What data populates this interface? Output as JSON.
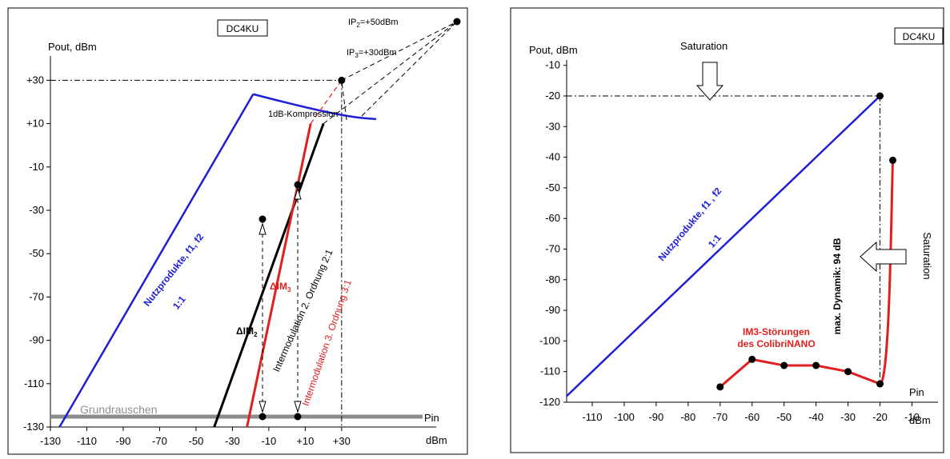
{
  "chart_data": [
    {
      "type": "line",
      "callsign": "DC4KU",
      "ylabel": "Pout, dBm",
      "xlabel": "Pin",
      "x_unit": "dBm",
      "xlim": [
        -130,
        40
      ],
      "ylim": [
        -130,
        40
      ],
      "x_ticks": [
        "-130",
        "-110",
        "-90",
        "-70",
        "-50",
        "-30",
        "-10",
        "+10",
        "+30"
      ],
      "y_ticks": [
        "+30",
        "+10",
        "-10",
        "-30",
        "-50",
        "-70",
        "-90",
        "-110",
        "-130"
      ],
      "series": [
        {
          "name": "Nutzprodukte, f1, f2",
          "slope_label": "1:1",
          "color": "#1f1fd6",
          "x": [
            -125,
            -18.6
          ],
          "y": [
            -130,
            23.6
          ]
        },
        {
          "name": "Intermodulation 2. Ordnung 2:1",
          "color": "#000000",
          "x": [
            -40,
            20
          ],
          "y": [
            -130,
            10
          ]
        },
        {
          "name": "Intermodulation 3. Ordnung 3:1",
          "color": "#e02020",
          "x": [
            -22,
            13
          ],
          "y": [
            -130,
            10
          ]
        }
      ],
      "points": [
        {
          "name": "IP3",
          "label": "+30dBm",
          "x": 30,
          "y": 30
        },
        {
          "name": "IP2",
          "label": "+50dBm",
          "x": 50,
          "y": 50
        }
      ],
      "annotations": {
        "compression": "1dB-Kompression",
        "noise_floor": "Grundrauschen",
        "delta_im2": "ΔIM",
        "delta_im3": "ΔIM",
        "ip2_prefix": "IP",
        "ip3_prefix": "IP",
        "sub2": "2",
        "sub3": "3"
      }
    },
    {
      "type": "line",
      "callsign": "DC4KU",
      "ylabel": "Pout, dBm",
      "xlabel": "Pin",
      "x_unit": "dBm",
      "xlim": [
        -120,
        -5
      ],
      "ylim": [
        -120,
        -5
      ],
      "x_ticks": [
        "-110",
        "-100",
        "-90",
        "-80",
        "-70",
        "-60",
        "-50",
        "-40",
        "-30",
        "-20",
        "-10"
      ],
      "y_ticks": [
        "-10",
        "-20",
        "-30",
        "-40",
        "-50",
        "-60",
        "-70",
        "-80",
        "-90",
        "-100",
        "-110",
        "-120"
      ],
      "series": [
        {
          "name": "Nutzprodukte, f1 , f2",
          "slope_label": "1:1",
          "color": "#1f1fd6",
          "x": [
            -118,
            -20
          ],
          "y": [
            -118,
            -20
          ]
        },
        {
          "name": "IM3-Störungen des ColibriNANO",
          "color": "#e02020",
          "x": [
            -70,
            -60,
            -50,
            -40,
            -30,
            -20,
            -16
          ],
          "y": [
            -115,
            -106,
            -108,
            -108,
            -110,
            -114,
            -41
          ]
        }
      ],
      "annotations": {
        "saturation_top": "Saturation",
        "saturation_right": "Saturation",
        "dynamic": "max. Dynamik: 94 dB",
        "im3_label_line1": "IM3-Störungen",
        "im3_label_line2": "des ColibriNANO"
      }
    }
  ]
}
